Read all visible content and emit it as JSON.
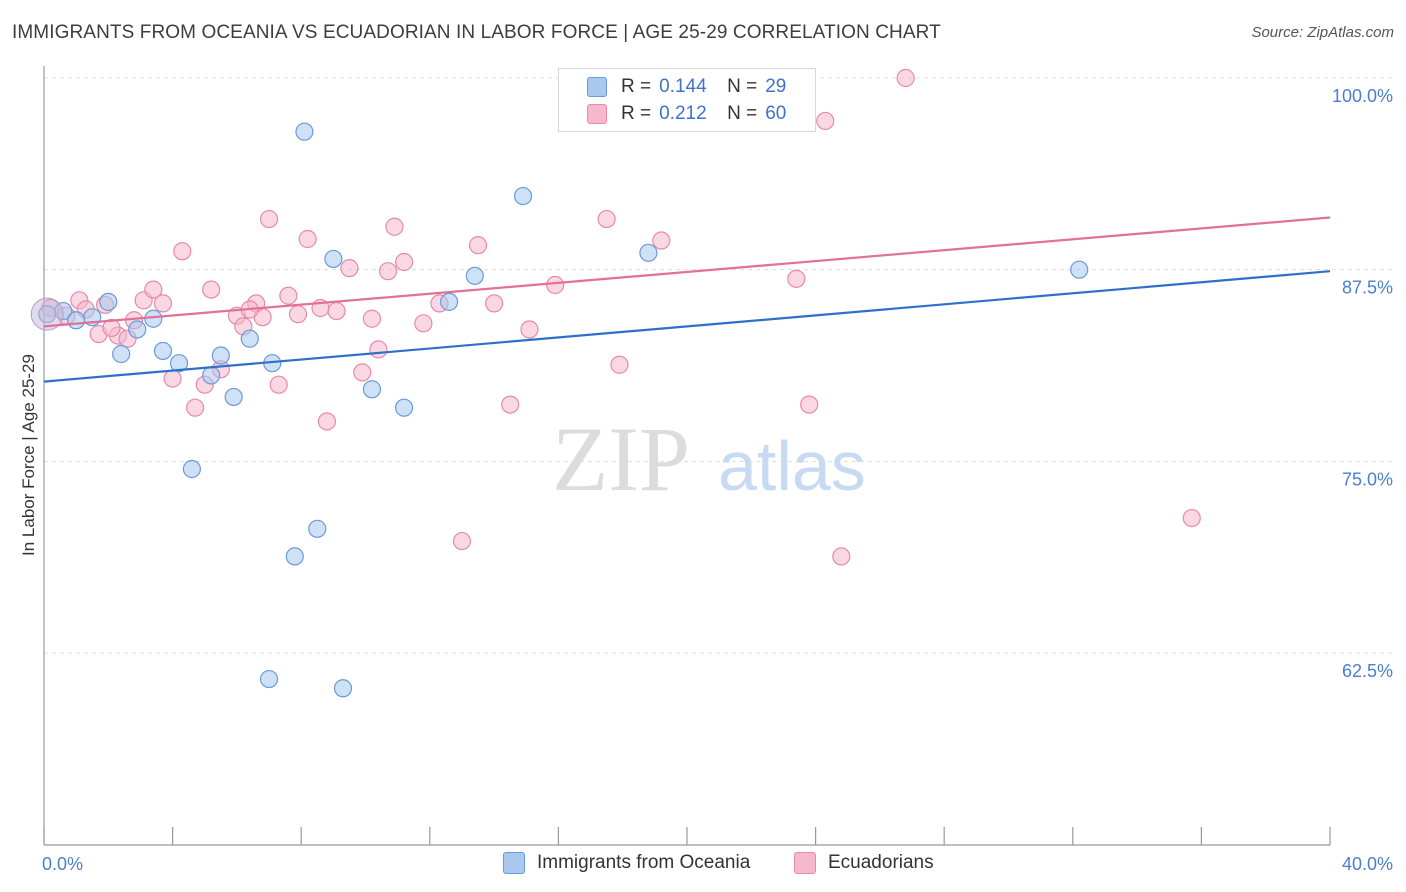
{
  "title": "IMMIGRANTS FROM OCEANIA VS ECUADORIAN IN LABOR FORCE | AGE 25-29 CORRELATION CHART",
  "source": "Source: ZipAtlas.com",
  "watermark": {
    "zip": "ZIP",
    "atlas": "atlas"
  },
  "legend": {
    "rows": [
      {
        "r_label": "R =",
        "r_value": "0.144",
        "n_label": "N =",
        "n_value": "29"
      },
      {
        "r_label": "R =",
        "r_value": "0.212",
        "n_label": "N =",
        "n_value": "60"
      }
    ]
  },
  "bottom_legend": {
    "series1": "Immigrants from Oceania",
    "series2": "Ecuadorians"
  },
  "colors": {
    "blue_fill": "#a8c8f0",
    "blue_stroke": "#6a9ad8",
    "blue_line": "#2f6fcc",
    "pink_fill": "#f5b8cc",
    "pink_stroke": "#e88aaa",
    "pink_line": "#e0729a",
    "tick_text": "#4a7fd0"
  },
  "chart_data": {
    "type": "scatter",
    "title": "IMMIGRANTS FROM OCEANIA VS ECUADORIAN IN LABOR FORCE | AGE 25-29 CORRELATION CHART",
    "xlabel": "",
    "ylabel": "In Labor Force | Age 25-29",
    "xlim": [
      0,
      40
    ],
    "ylim": [
      50,
      100
    ],
    "x_tick_labels": [
      "0.0%",
      "40.0%"
    ],
    "y_ticks": [
      62.5,
      75.0,
      87.5,
      100.0
    ],
    "y_tick_labels": [
      "62.5%",
      "75.0%",
      "87.5%",
      "100.0%"
    ],
    "grid": true,
    "legend_placement": "top-center",
    "series": [
      {
        "name": "Immigrants from Oceania",
        "color": "#a8c8f0",
        "trend": {
          "x": [
            0,
            40
          ],
          "y": [
            80.2,
            87.4
          ]
        },
        "points": [
          [
            0.1,
            84.6
          ],
          [
            0.6,
            84.8
          ],
          [
            1.5,
            84.4
          ],
          [
            2.0,
            85.4
          ],
          [
            2.4,
            82.0
          ],
          [
            2.9,
            83.6
          ],
          [
            3.4,
            84.3
          ],
          [
            3.7,
            82.2
          ],
          [
            4.2,
            81.4
          ],
          [
            4.6,
            74.5
          ],
          [
            5.2,
            80.6
          ],
          [
            5.5,
            81.9
          ],
          [
            5.9,
            79.2
          ],
          [
            6.4,
            83.0
          ],
          [
            7.1,
            81.4
          ],
          [
            8.1,
            96.5
          ],
          [
            9.0,
            88.2
          ],
          [
            10.2,
            79.7
          ],
          [
            11.2,
            78.5
          ],
          [
            12.6,
            85.4
          ],
          [
            13.4,
            87.1
          ],
          [
            14.9,
            92.3
          ],
          [
            18.8,
            88.6
          ],
          [
            32.2,
            87.5
          ],
          [
            7.8,
            68.8
          ],
          [
            8.5,
            70.6
          ],
          [
            7.0,
            60.8
          ],
          [
            9.3,
            60.2
          ],
          [
            1.0,
            84.2
          ]
        ]
      },
      {
        "name": "Ecuadorians",
        "color": "#f5b8cc",
        "trend": {
          "x": [
            0,
            40
          ],
          "y": [
            83.8,
            90.9
          ]
        },
        "points": [
          [
            0.2,
            85.0
          ],
          [
            0.7,
            84.5
          ],
          [
            1.1,
            85.5
          ],
          [
            1.3,
            84.9
          ],
          [
            1.7,
            83.3
          ],
          [
            1.9,
            85.2
          ],
          [
            2.3,
            83.2
          ],
          [
            2.6,
            83.0
          ],
          [
            2.8,
            84.2
          ],
          [
            3.1,
            85.5
          ],
          [
            3.4,
            86.2
          ],
          [
            3.7,
            85.3
          ],
          [
            4.0,
            80.4
          ],
          [
            4.3,
            88.7
          ],
          [
            4.7,
            78.5
          ],
          [
            5.0,
            80.0
          ],
          [
            5.2,
            86.2
          ],
          [
            5.5,
            81.0
          ],
          [
            6.0,
            84.5
          ],
          [
            6.2,
            83.8
          ],
          [
            6.6,
            85.3
          ],
          [
            6.8,
            84.4
          ],
          [
            7.0,
            90.8
          ],
          [
            7.3,
            80.0
          ],
          [
            7.6,
            85.8
          ],
          [
            7.9,
            84.6
          ],
          [
            8.2,
            89.5
          ],
          [
            8.6,
            85.0
          ],
          [
            8.8,
            77.6
          ],
          [
            9.1,
            84.8
          ],
          [
            9.5,
            87.6
          ],
          [
            9.9,
            80.8
          ],
          [
            10.2,
            84.3
          ],
          [
            10.4,
            82.3
          ],
          [
            10.7,
            87.4
          ],
          [
            10.9,
            90.3
          ],
          [
            11.2,
            88.0
          ],
          [
            11.8,
            84.0
          ],
          [
            12.3,
            85.3
          ],
          [
            13.0,
            69.8
          ],
          [
            13.5,
            89.1
          ],
          [
            14.0,
            85.3
          ],
          [
            14.5,
            78.7
          ],
          [
            15.1,
            83.6
          ],
          [
            15.9,
            86.5
          ],
          [
            17.5,
            90.8
          ],
          [
            17.9,
            81.3
          ],
          [
            18.6,
            100.0
          ],
          [
            19.2,
            89.4
          ],
          [
            22.1,
            100.0
          ],
          [
            23.1,
            97.5
          ],
          [
            23.4,
            86.9
          ],
          [
            23.8,
            78.7
          ],
          [
            24.8,
            68.8
          ],
          [
            26.8,
            100.0
          ],
          [
            35.7,
            71.3
          ],
          [
            21.4,
            100.0
          ],
          [
            24.3,
            97.2
          ],
          [
            6.4,
            84.9
          ],
          [
            2.1,
            83.7
          ]
        ]
      }
    ]
  }
}
